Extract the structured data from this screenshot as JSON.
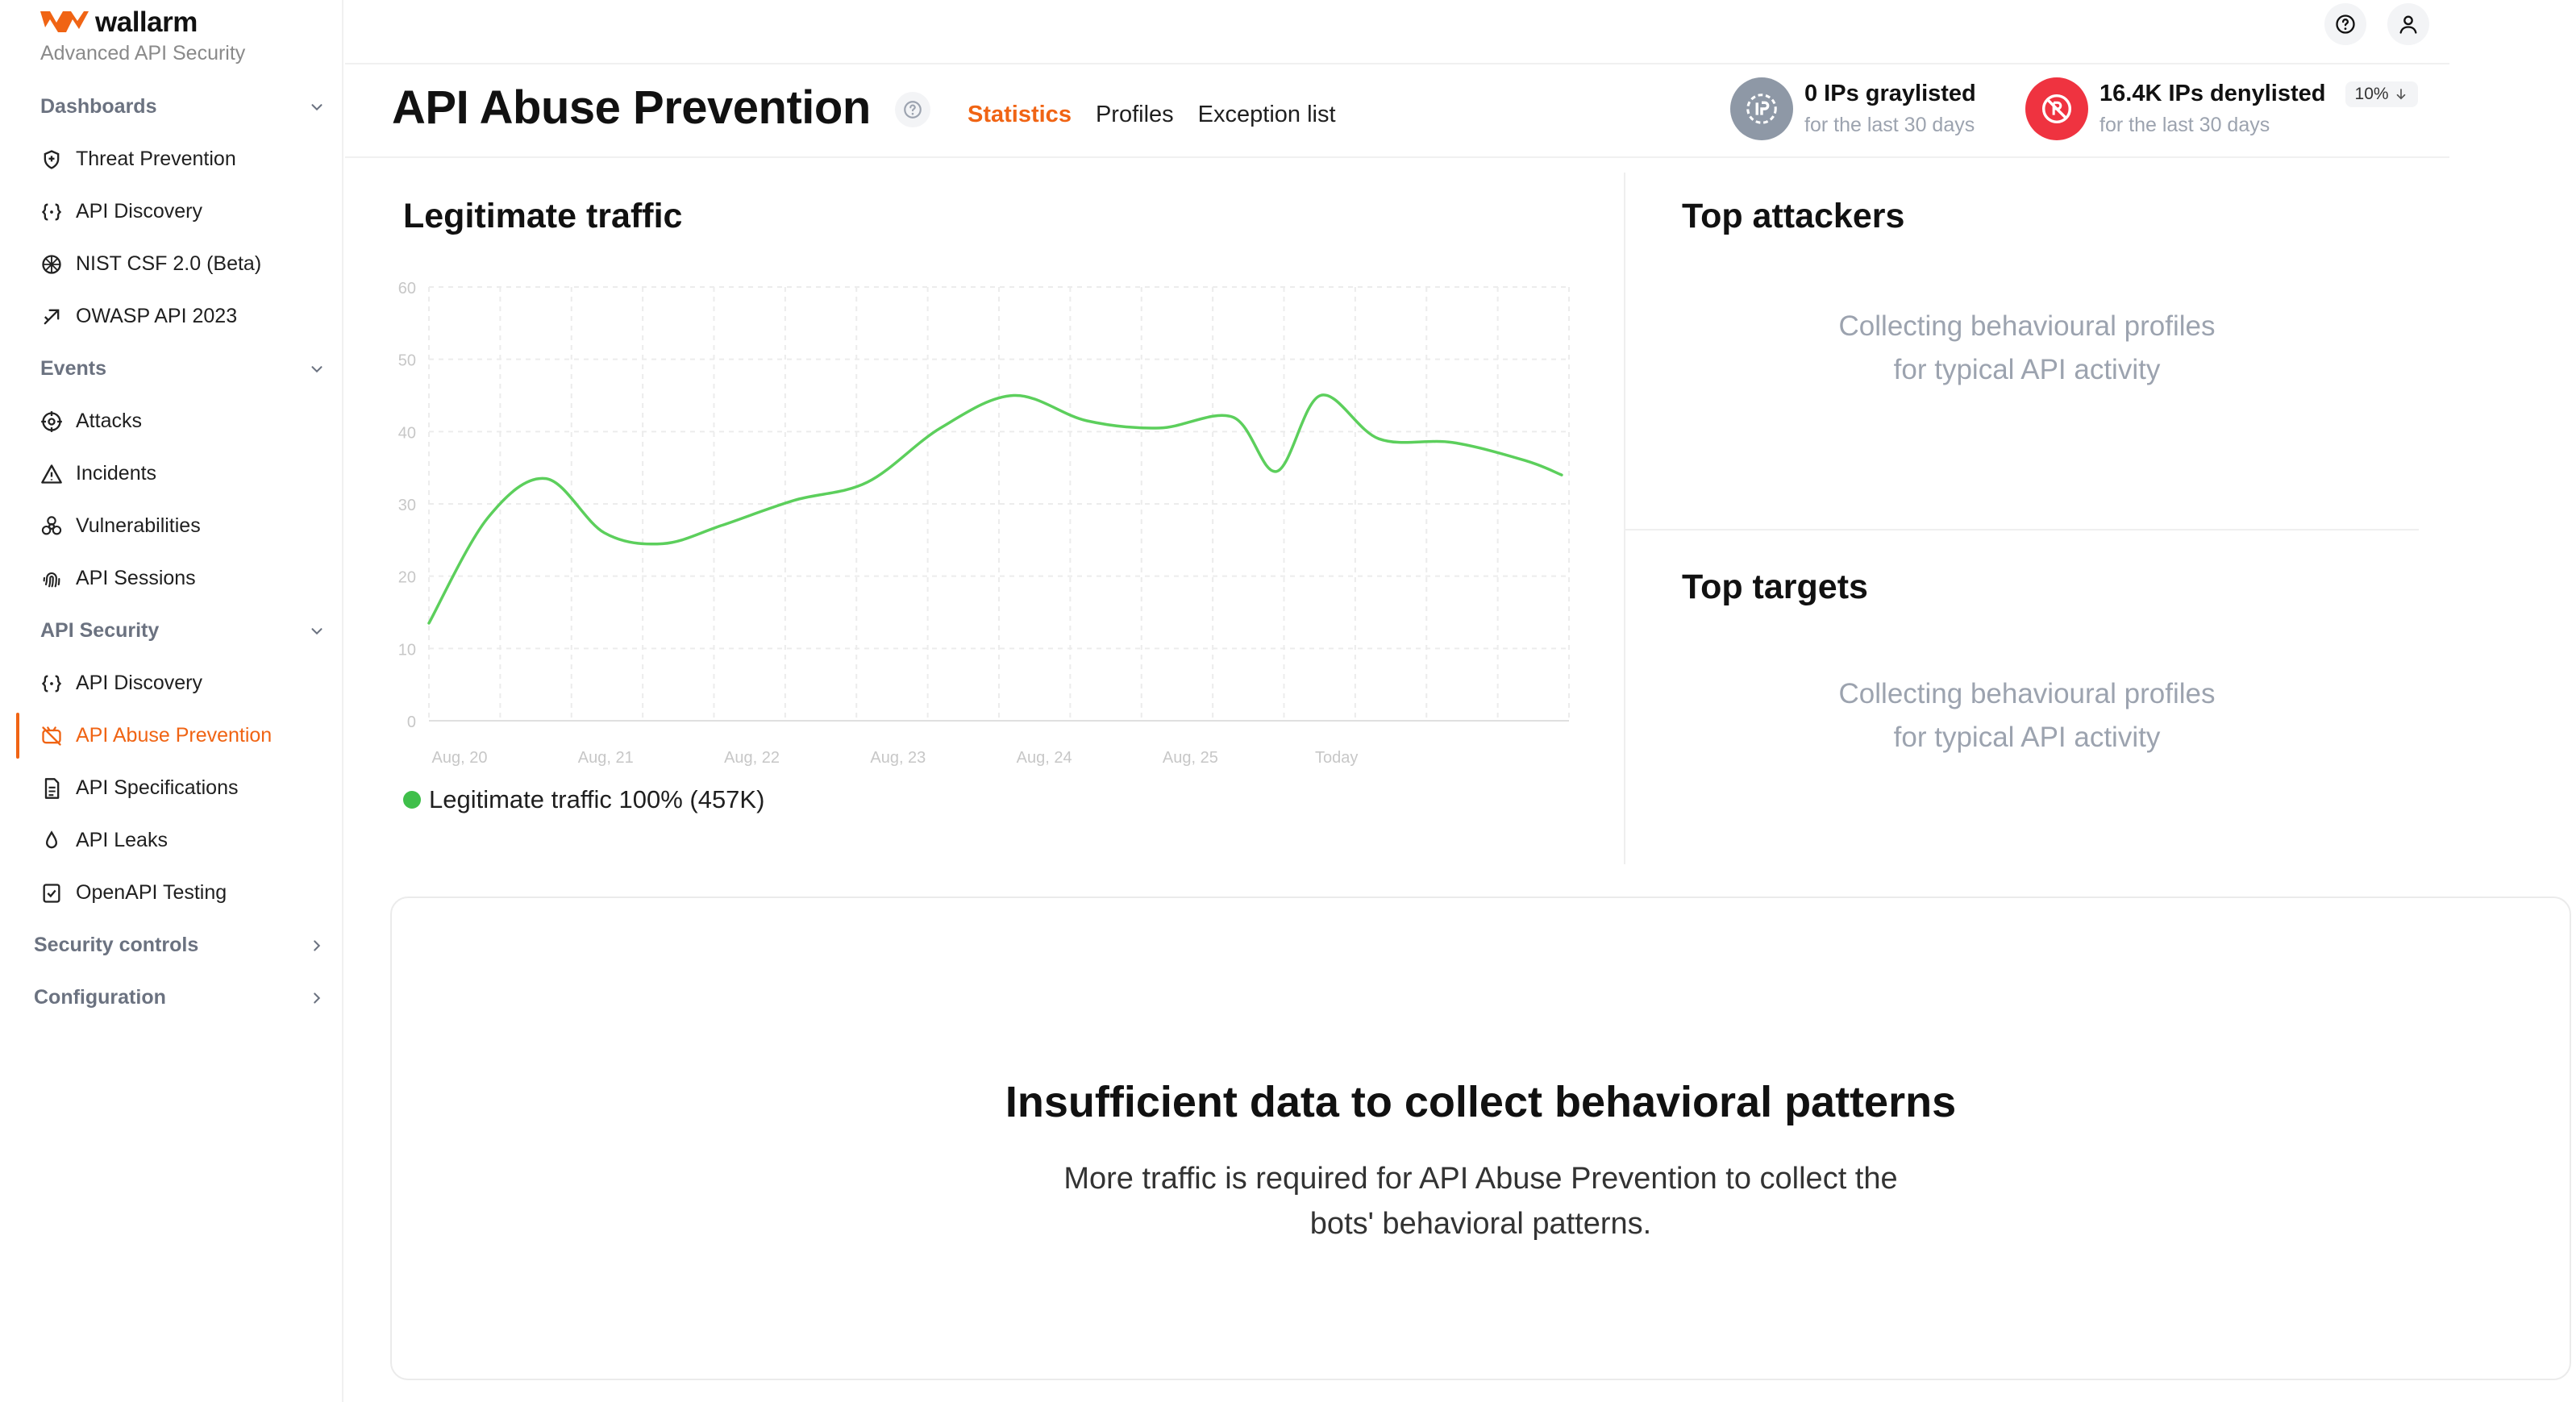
{
  "brand": {
    "name": "wallarm",
    "subtitle": "Advanced API Security"
  },
  "sidebar": {
    "sections": [
      {
        "label": "Dashboards",
        "items": [
          "Threat Prevention",
          "API Discovery",
          "NIST CSF 2.0 (Beta)",
          "OWASP API 2023"
        ]
      },
      {
        "label": "Events",
        "items": [
          "Attacks",
          "Incidents",
          "Vulnerabilities",
          "API Sessions"
        ]
      },
      {
        "label": "API Security",
        "items": [
          "API Discovery",
          "API Abuse Prevention",
          "API Specifications",
          "API Leaks",
          "OpenAPI Testing"
        ]
      },
      {
        "label": "Security controls",
        "items": []
      },
      {
        "label": "Configuration",
        "items": []
      }
    ],
    "active_item": "API Abuse Prevention",
    "icons": [
      "shield-icon",
      "braces-icon",
      "nist-icon",
      "owasp-icon",
      "crosshair-icon",
      "warning-icon",
      "biohazard-icon",
      "fingerprint-icon",
      "braces-icon",
      "abuse-icon",
      "document-icon",
      "drop-icon",
      "checklist-icon"
    ]
  },
  "header": {
    "title": "API Abuse Prevention",
    "tabs": [
      "Statistics",
      "Profiles",
      "Exception list"
    ],
    "active_tab": "Statistics",
    "graylisted": {
      "value": "0 IPs graylisted",
      "period": "for the last 30 days"
    },
    "denylisted": {
      "value": "16.4K IPs denylisted",
      "change": "10%",
      "period": "for the last 30 days"
    }
  },
  "legitimate": {
    "title": "Legitimate traffic",
    "legend": "Legitimate traffic 100% (457K)"
  },
  "attackers": {
    "title": "Top attackers",
    "placeholder_line1": "Collecting behavioural profiles",
    "placeholder_line2": "for typical API activity"
  },
  "targets": {
    "title": "Top targets",
    "placeholder_line1": "Collecting behavioural profiles",
    "placeholder_line2": "for typical API activity"
  },
  "insufficient": {
    "title": "Insufficient data to collect behavioral patterns",
    "text_line1": "More traffic is required for API Abuse Prevention to collect the",
    "text_line2": "bots' behavioral patterns."
  },
  "colors": {
    "accent": "#f06414",
    "line": "#5ccf5c",
    "legend_dot": "#3fbf4a",
    "denylist_badge": "#ef3340",
    "graylist_badge": "#8e98a6"
  },
  "chart_data": {
    "type": "line",
    "categories": [
      "Aug, 20",
      "Aug, 21",
      "Aug, 22",
      "Aug, 23",
      "Aug, 24",
      "Aug, 25",
      "Today"
    ],
    "ylim": [
      0,
      60
    ],
    "yticks": [
      "0",
      "10",
      "20",
      "30",
      "40",
      "50",
      "60"
    ],
    "grid": true,
    "series": [
      {
        "name": "Legitimate traffic",
        "x": [
          0,
          0.4,
          0.8,
          1.2,
          1.6,
          2.0,
          2.5,
          3.0,
          3.5,
          4.0,
          4.5,
          5.0,
          5.5,
          5.8,
          6.1,
          6.5,
          7.0,
          7.5,
          7.75
        ],
        "values": [
          13.5,
          28,
          33.5,
          26,
          24.5,
          27,
          30.5,
          33,
          40.5,
          45,
          41.5,
          40.5,
          42,
          34.5,
          45,
          39,
          38.5,
          36,
          34
        ]
      }
    ]
  }
}
